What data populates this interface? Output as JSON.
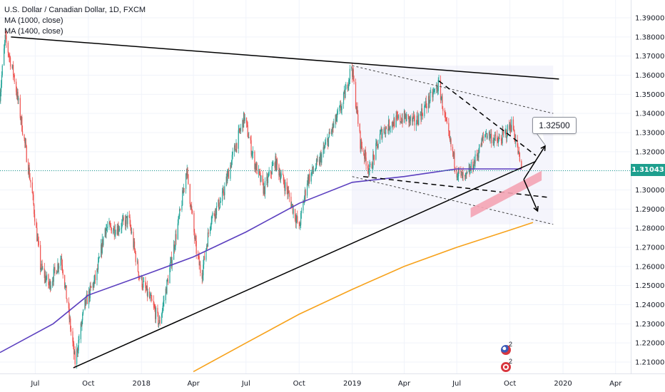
{
  "legend": {
    "title": "U.S. Dollar / Canadian Dollar, 1D, FXCM",
    "ma1": "MA (1000, close)",
    "ma2": "MA (1400, close)"
  },
  "price_axis": {
    "ticks": [
      "1.39000",
      "1.38000",
      "1.37000",
      "1.36000",
      "1.35000",
      "1.34000",
      "1.33000",
      "1.32000",
      "1.31000",
      "1.30000",
      "1.29000",
      "1.28000",
      "1.27000",
      "1.26000",
      "1.25000",
      "1.24000",
      "1.23000",
      "1.22000",
      "1.21000"
    ],
    "current_price": "1.31043"
  },
  "time_axis": {
    "labels": [
      "Jul",
      "Oct",
      "2018",
      "Apr",
      "Jul",
      "Oct",
      "2019",
      "Apr",
      "Jul",
      "Oct",
      "2020",
      "Apr"
    ]
  },
  "annotation": {
    "target": "1.32500"
  },
  "events": {
    "us_count": "2",
    "ca_count": "2"
  },
  "colors": {
    "candle_up": "#26a69a",
    "candle_down": "#ef5350",
    "ma1": "#5b3fbf",
    "ma2": "#f7a21b",
    "trend": "#000000",
    "price_tag": "#1e9f8e"
  },
  "chart_data": {
    "type": "candlestick",
    "title": "U.S. Dollar / Canadian Dollar, 1D, FXCM",
    "ylim": [
      1.2,
      1.395
    ],
    "x_range": [
      "2017-05",
      "2020-05"
    ],
    "price_path": [
      [
        "2017-05-01",
        1.35
      ],
      [
        "2017-05-10",
        1.379
      ],
      [
        "2017-05-25",
        1.36
      ],
      [
        "2017-06-10",
        1.33
      ],
      [
        "2017-06-25",
        1.3
      ],
      [
        "2017-07-10",
        1.26
      ],
      [
        "2017-07-25",
        1.25
      ],
      [
        "2017-08-15",
        1.265
      ],
      [
        "2017-09-08",
        1.21
      ],
      [
        "2017-09-25",
        1.24
      ],
      [
        "2017-10-15",
        1.255
      ],
      [
        "2017-10-30",
        1.28
      ],
      [
        "2017-11-20",
        1.28
      ],
      [
        "2017-12-10",
        1.285
      ],
      [
        "2017-12-28",
        1.255
      ],
      [
        "2018-01-20",
        1.24
      ],
      [
        "2018-02-01",
        1.23
      ],
      [
        "2018-02-20",
        1.26
      ],
      [
        "2018-03-10",
        1.29
      ],
      [
        "2018-03-20",
        1.311
      ],
      [
        "2018-04-05",
        1.27
      ],
      [
        "2018-04-15",
        1.255
      ],
      [
        "2018-05-01",
        1.285
      ],
      [
        "2018-05-20",
        1.295
      ],
      [
        "2018-06-10",
        1.32
      ],
      [
        "2018-06-28",
        1.338
      ],
      [
        "2018-07-15",
        1.315
      ],
      [
        "2018-08-01",
        1.3
      ],
      [
        "2018-08-20",
        1.315
      ],
      [
        "2018-09-10",
        1.3
      ],
      [
        "2018-10-01",
        1.28
      ],
      [
        "2018-10-15",
        1.305
      ],
      [
        "2018-11-05",
        1.315
      ],
      [
        "2018-11-25",
        1.33
      ],
      [
        "2018-12-15",
        1.345
      ],
      [
        "2018-12-31",
        1.365
      ],
      [
        "2019-01-15",
        1.325
      ],
      [
        "2019-01-31",
        1.31
      ],
      [
        "2019-02-20",
        1.33
      ],
      [
        "2019-03-10",
        1.335
      ],
      [
        "2019-04-01",
        1.338
      ],
      [
        "2019-04-20",
        1.335
      ],
      [
        "2019-05-10",
        1.345
      ],
      [
        "2019-05-31",
        1.355
      ],
      [
        "2019-06-15",
        1.33
      ],
      [
        "2019-07-01",
        1.31
      ],
      [
        "2019-07-15",
        1.305
      ],
      [
        "2019-08-01",
        1.315
      ],
      [
        "2019-08-20",
        1.33
      ],
      [
        "2019-09-10",
        1.325
      ],
      [
        "2019-09-25",
        1.33
      ],
      [
        "2019-10-05",
        1.335
      ],
      [
        "2019-10-15",
        1.32
      ],
      [
        "2019-10-21",
        1.3104
      ]
    ],
    "ma1000": [
      [
        "2017-05-01",
        1.215
      ],
      [
        "2017-08-01",
        1.23
      ],
      [
        "2017-10-01",
        1.245
      ],
      [
        "2018-01-01",
        1.255
      ],
      [
        "2018-04-01",
        1.265
      ],
      [
        "2018-07-01",
        1.278
      ],
      [
        "2018-10-01",
        1.293
      ],
      [
        "2019-01-01",
        1.304
      ],
      [
        "2019-04-01",
        1.307
      ],
      [
        "2019-07-01",
        1.311
      ],
      [
        "2019-10-21",
        1.311
      ]
    ],
    "ma1400": [
      [
        "2018-04-01",
        1.205
      ],
      [
        "2018-07-01",
        1.22
      ],
      [
        "2018-10-01",
        1.235
      ],
      [
        "2019-01-01",
        1.248
      ],
      [
        "2019-04-01",
        1.26
      ],
      [
        "2019-07-01",
        1.27
      ],
      [
        "2019-10-01",
        1.279
      ],
      [
        "2019-11-10",
        1.283
      ]
    ],
    "drawings": {
      "upper_trendline": [
        [
          "2017-05-20",
          1.38
        ],
        [
          "2019-12-25",
          1.358
        ]
      ],
      "lower_trendline": [
        [
          "2017-09-05",
          1.207
        ],
        [
          "2019-11-15",
          1.315
        ]
      ],
      "channel_upper": [
        [
          "2019-01-01",
          1.365
        ],
        [
          "2019-12-15",
          1.34
        ]
      ],
      "channel_lower": [
        [
          "2019-01-01",
          1.307
        ],
        [
          "2019-12-15",
          1.282
        ]
      ],
      "wedge_upper": [
        [
          "2019-05-31",
          1.357
        ],
        [
          "2019-11-15",
          1.318
        ]
      ],
      "wedge_lower": [
        [
          "2019-01-20",
          1.307
        ],
        [
          "2019-12-10",
          1.296
        ]
      ],
      "target": 1.325
    }
  }
}
